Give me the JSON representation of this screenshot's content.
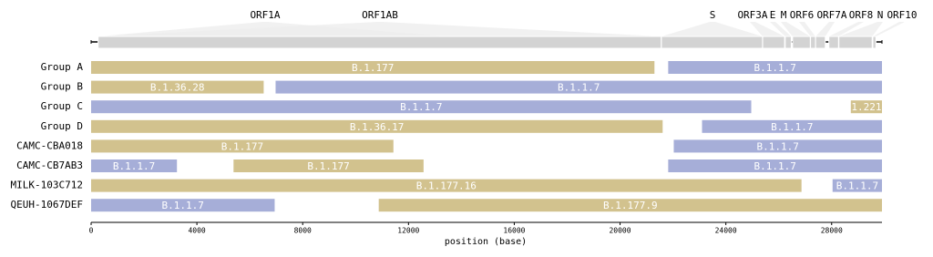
{
  "chart_data": {
    "type": "range-bar",
    "xlabel": "position (base)",
    "xlim": [
      0,
      29903
    ],
    "xticks": [
      0,
      4000,
      8000,
      12000,
      16000,
      20000,
      24000,
      28000
    ],
    "genes": [
      {
        "name": "ORF1A",
        "start": 266,
        "end": 13483,
        "color": "#d3d3d3"
      },
      {
        "name": "ORF1AB",
        "start": 266,
        "end": 21555,
        "color": "#d3d3d3"
      },
      {
        "name": "S",
        "start": 21563,
        "end": 25384,
        "color": "#d3d3d3"
      },
      {
        "name": "ORF3A",
        "start": 25393,
        "end": 26220,
        "color": "#d3d3d3"
      },
      {
        "name": "E",
        "start": 26245,
        "end": 26472,
        "color": "#d3d3d3"
      },
      {
        "name": "M",
        "start": 26523,
        "end": 27191,
        "color": "#d3d3d3"
      },
      {
        "name": "ORF6",
        "start": 27202,
        "end": 27387,
        "color": "#d3d3d3"
      },
      {
        "name": "ORF7A",
        "start": 27394,
        "end": 27759,
        "color": "#d3d3d3"
      },
      {
        "name": "ORF8",
        "start": 27894,
        "end": 28259,
        "color": "#d3d3d3"
      },
      {
        "name": "N",
        "start": 28274,
        "end": 29533,
        "color": "#d3d3d3"
      },
      {
        "name": "ORF10",
        "start": 29558,
        "end": 29674,
        "color": "#d3d3d3"
      }
    ],
    "rows": [
      {
        "name": "Group A",
        "segments": [
          {
            "label": "B.1.177",
            "start": 0,
            "end": 21300,
            "color": "#d2c28e"
          },
          {
            "label": "B.1.1.7",
            "start": 21820,
            "end": 29903,
            "color": "#a6aed8"
          }
        ]
      },
      {
        "name": "Group B",
        "segments": [
          {
            "label": "B.1.36.28",
            "start": 0,
            "end": 6525,
            "color": "#d2c28e"
          },
          {
            "label": "B.1.1.7",
            "start": 6975,
            "end": 29903,
            "color": "#a6aed8"
          }
        ]
      },
      {
        "name": "Group C",
        "segments": [
          {
            "label": "B.1.1.7",
            "start": 0,
            "end": 24960,
            "color": "#a6aed8"
          },
          {
            "label": "1.221",
            "start": 28725,
            "end": 29903,
            "color": "#d2c28e"
          }
        ]
      },
      {
        "name": "Group D",
        "segments": [
          {
            "label": "B.1.36.17",
            "start": 0,
            "end": 21610,
            "color": "#d2c28e"
          },
          {
            "label": "B.1.1.7",
            "start": 23100,
            "end": 29903,
            "color": "#a6aed8"
          }
        ]
      },
      {
        "name": "CAMC-CBA018",
        "segments": [
          {
            "label": "B.1.177",
            "start": 0,
            "end": 11430,
            "color": "#d2c28e"
          },
          {
            "label": "B.1.1.7",
            "start": 22030,
            "end": 29903,
            "color": "#a6aed8"
          }
        ]
      },
      {
        "name": "CAMC-CB7AB3",
        "segments": [
          {
            "label": "B.1.1.7",
            "start": 0,
            "end": 3245,
            "color": "#a6aed8"
          },
          {
            "label": "B.1.177",
            "start": 5385,
            "end": 12570,
            "color": "#d2c28e"
          },
          {
            "label": "B.1.1.7",
            "start": 21820,
            "end": 29903,
            "color": "#a6aed8"
          }
        ]
      },
      {
        "name": "MILK-103C712",
        "segments": [
          {
            "label": "B.1.177.16",
            "start": 0,
            "end": 26860,
            "color": "#d2c28e"
          },
          {
            "label": "B.1.1.7",
            "start": 28035,
            "end": 29903,
            "color": "#a6aed8"
          }
        ]
      },
      {
        "name": "QEUH-1067DEF",
        "segments": [
          {
            "label": "B.1.1.7",
            "start": 0,
            "end": 6940,
            "color": "#a6aed8"
          },
          {
            "label": "B.1.177.9",
            "start": 10875,
            "end": 29903,
            "color": "#d2c28e"
          }
        ]
      }
    ]
  }
}
